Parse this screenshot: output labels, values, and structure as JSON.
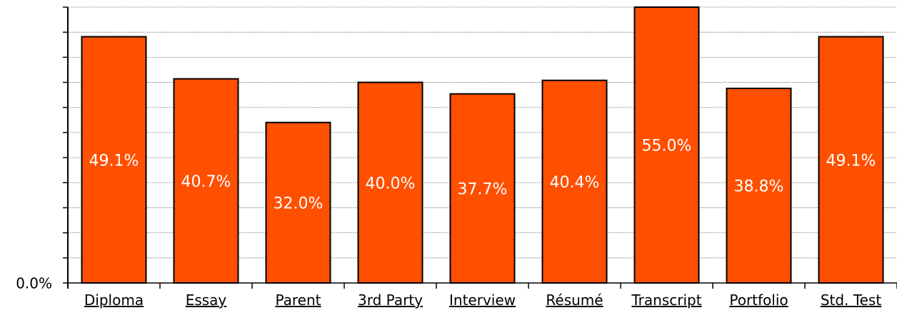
{
  "chart_data": {
    "type": "bar",
    "categories": [
      "Diploma",
      "Essay",
      "Parent",
      "3rd Party",
      "Interview",
      "Résumé",
      "Transcript",
      "Portfolio",
      "Std. Test"
    ],
    "values": [
      49.1,
      40.7,
      32.0,
      40.0,
      37.7,
      40.4,
      55.0,
      38.8,
      49.1
    ],
    "value_labels": [
      "49.1%",
      "40.7%",
      "32.0%",
      "40.0%",
      "37.7%",
      "40.4%",
      "55.0%",
      "38.8%",
      "49.1%"
    ],
    "color": "#ff4f00",
    "ylim": [
      0,
      55
    ],
    "yticks": [
      {
        "value": 0,
        "label": "0.0%"
      }
    ],
    "gridlines": [
      5,
      10,
      15,
      20,
      25,
      30,
      35,
      40,
      45,
      50,
      55
    ],
    "grid": true
  }
}
